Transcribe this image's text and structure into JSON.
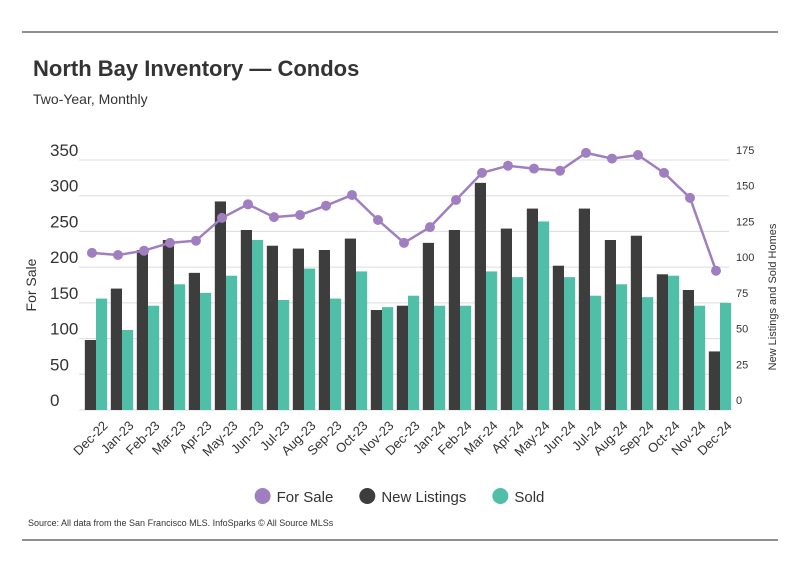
{
  "chart_data": {
    "type": "bar-line",
    "title": "North Bay Inventory — Condos",
    "subtitle": "Two-Year, Monthly",
    "y_label": "For Sale",
    "y2_label": "New Listings and Sold Homes",
    "source": "Source:  All data from the San Francisco MLS. InfoSparks © All Source MLSs",
    "categories": [
      "Dec-22",
      "Jan-23",
      "Feb-23",
      "Mar-23",
      "Apr-23",
      "May-23",
      "Jun-23",
      "Jul-23",
      "Aug-23",
      "Sep-23",
      "Oct-23",
      "Nov-23",
      "Dec-23",
      "Jan-24",
      "Feb-24",
      "Mar-24",
      "Apr-24",
      "May-24",
      "Jun-24",
      "Jul-24",
      "Aug-24",
      "Sep-24",
      "Oct-24",
      "Nov-24",
      "Dec-24"
    ],
    "series": [
      {
        "name": "For Sale",
        "type": "line",
        "color": "#a07fc0",
        "values": [
          220,
          217,
          223,
          234,
          237,
          269,
          288,
          270,
          273,
          286,
          301,
          266,
          234,
          256,
          294,
          332,
          342,
          338,
          335,
          360,
          352,
          357,
          332,
          297,
          195
        ]
      },
      {
        "name": "New Listings",
        "type": "bar",
        "axis": "y2",
        "color": "#3d3d3d",
        "values": [
          49,
          85,
          112,
          119,
          96,
          146,
          126,
          115,
          113,
          112,
          120,
          70,
          73,
          117,
          126,
          159,
          127,
          141,
          101,
          141,
          119,
          122,
          95,
          84,
          41
        ]
      },
      {
        "name": "Sold",
        "type": "bar",
        "axis": "y2",
        "color": "#4fbfa8",
        "values": [
          78,
          56,
          73,
          88,
          82,
          94,
          119,
          77,
          99,
          78,
          97,
          72,
          80,
          73,
          73,
          97,
          93,
          132,
          93,
          80,
          88,
          79,
          94,
          73,
          75
        ]
      }
    ],
    "ylim": [
      0,
      350
    ],
    "yticks": [
      0,
      50,
      100,
      150,
      200,
      250,
      300,
      350
    ],
    "y2lim": [
      0,
      175
    ],
    "y2ticks": [
      0,
      25,
      50,
      75,
      100,
      125,
      150,
      175
    ],
    "grid": true
  }
}
